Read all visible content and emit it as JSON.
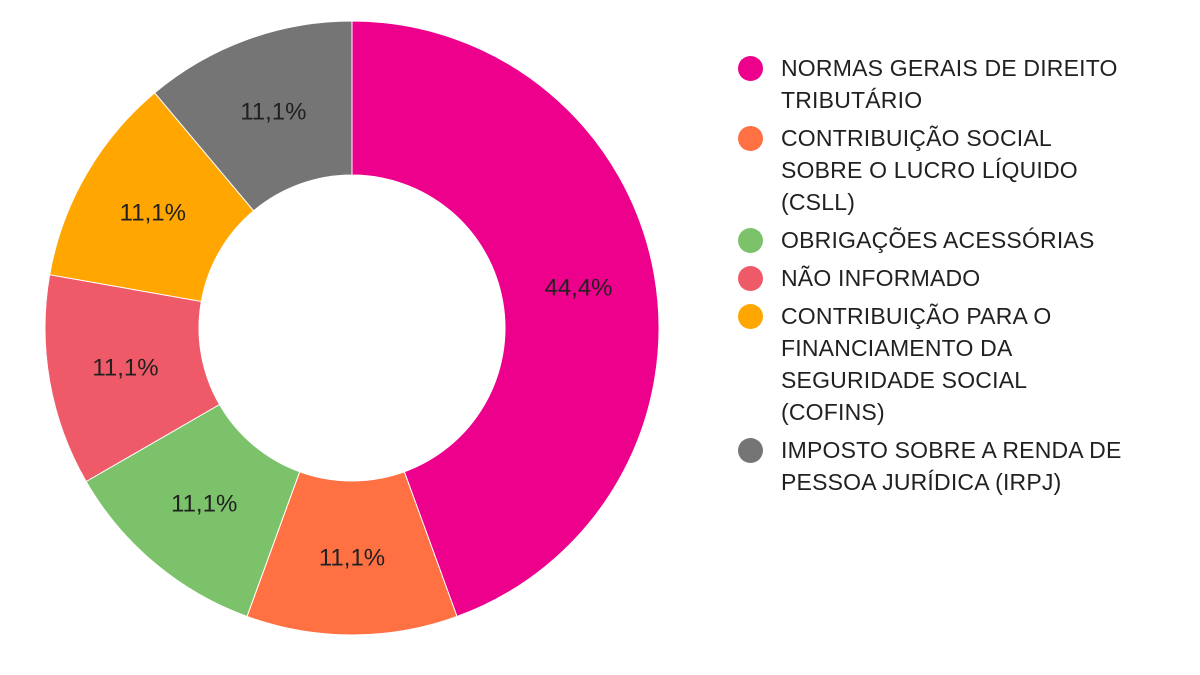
{
  "chart_data": {
    "type": "pie",
    "donut": true,
    "categories": [
      "NORMAS GERAIS DE DIREITO TRIBUTÁRIO",
      "CONTRIBUIÇÃO SOCIAL SOBRE O LUCRO LÍQUIDO (CSLL)",
      "OBRIGAÇÕES ACESSÓRIAS",
      "NÃO INFORMADO",
      "CONTRIBUIÇÃO PARA O FINANCIAMENTO DA SEGURIDADE SOCIAL (COFINS)",
      "IMPOSTO SOBRE A RENDA DE PESSOA JURÍDICA (IRPJ)"
    ],
    "values": [
      44.4,
      11.1,
      11.1,
      11.1,
      11.1,
      11.1
    ],
    "value_labels": [
      "44,4%",
      "11,1%",
      "11,1%",
      "11,1%",
      "11,1%",
      "11,1%"
    ],
    "colors": [
      "#EC008C",
      "#FF7043",
      "#7CC26A",
      "#EF5A68",
      "#FFA600",
      "#757575"
    ],
    "legend_position": "right"
  }
}
